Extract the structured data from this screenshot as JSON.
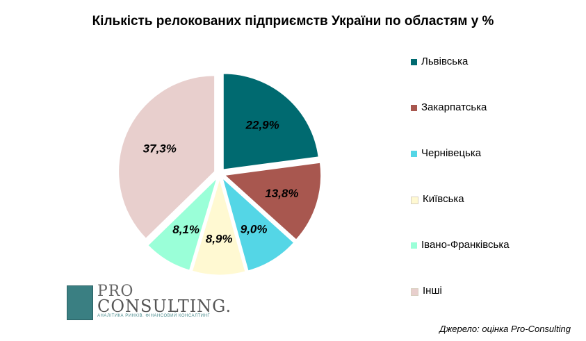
{
  "chart_data": {
    "type": "pie",
    "title": "Кількість релокованих підприємств України по областям у %",
    "categories": [
      "Львівська",
      "Закарпатська",
      "Чернівецька",
      "Київська",
      "Івано-Франківська",
      "Інші"
    ],
    "values": [
      22.9,
      13.8,
      9.0,
      8.9,
      8.1,
      37.3
    ],
    "data_labels": [
      "22,9%",
      "13,8%",
      "9,0%",
      "8,9%",
      "8,1%",
      "37,3%"
    ],
    "colors": [
      "#006a70",
      "#a8574f",
      "#54d6e6",
      "#fff9d2",
      "#9affd8",
      "#e8cfcd"
    ],
    "legend_placement": "right",
    "exploded": true
  },
  "source": "Джерело: оцінка Pro-Consulting",
  "logo": {
    "line1": "PRO",
    "line2": "CONSULTING.",
    "tagline": "АНАЛІТИКА РИНКІВ. ФІНАНСОВИЙ КОНСАЛТИНГ"
  }
}
